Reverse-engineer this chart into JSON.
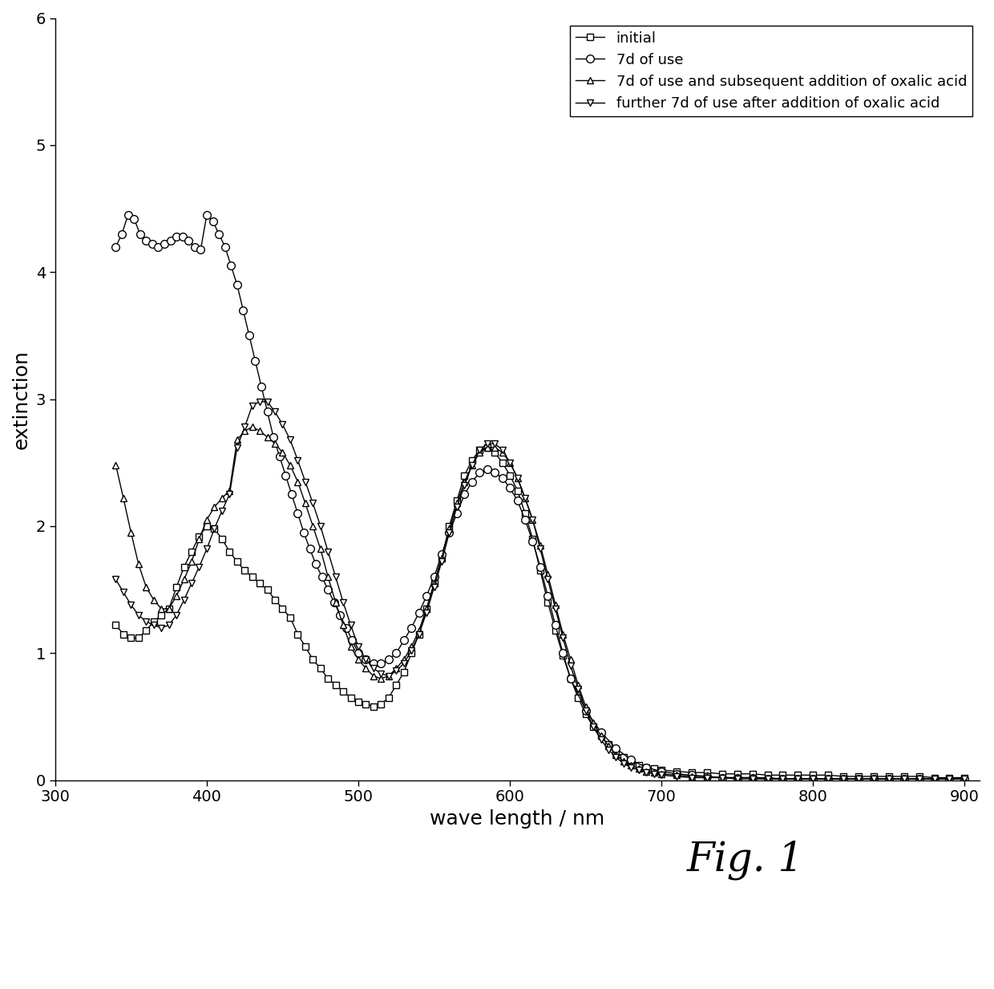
{
  "title": "",
  "xlabel": "wave length / nm",
  "ylabel": "extinction",
  "xlim": [
    300,
    910
  ],
  "ylim": [
    0,
    6
  ],
  "xticks": [
    300,
    400,
    500,
    600,
    700,
    800,
    900
  ],
  "yticks": [
    0,
    1,
    2,
    3,
    4,
    5,
    6
  ],
  "fig_caption": "Fig. 1",
  "legend_labels": [
    "initial",
    "7d of use",
    "7d of use and subsequent addition of oxalic acid",
    "further 7d of use after addition of oxalic acid"
  ],
  "line_color": "#000000",
  "background_color": "#ffffff",
  "series": {
    "initial": {
      "x": [
        340,
        345,
        350,
        355,
        360,
        365,
        370,
        375,
        380,
        385,
        390,
        395,
        400,
        405,
        410,
        415,
        420,
        425,
        430,
        435,
        440,
        445,
        450,
        455,
        460,
        465,
        470,
        475,
        480,
        485,
        490,
        495,
        500,
        505,
        510,
        515,
        520,
        525,
        530,
        535,
        540,
        545,
        550,
        555,
        560,
        565,
        570,
        575,
        580,
        585,
        590,
        595,
        600,
        605,
        610,
        615,
        620,
        625,
        630,
        635,
        640,
        645,
        650,
        655,
        660,
        665,
        670,
        675,
        680,
        685,
        690,
        695,
        700,
        710,
        720,
        730,
        740,
        750,
        760,
        770,
        780,
        790,
        800,
        810,
        820,
        830,
        840,
        850,
        860,
        870,
        880,
        890,
        900
      ],
      "y": [
        1.22,
        1.15,
        1.12,
        1.12,
        1.18,
        1.25,
        1.3,
        1.35,
        1.52,
        1.68,
        1.8,
        1.92,
        2.0,
        1.98,
        1.9,
        1.8,
        1.72,
        1.65,
        1.6,
        1.55,
        1.5,
        1.42,
        1.35,
        1.28,
        1.15,
        1.05,
        0.95,
        0.88,
        0.8,
        0.75,
        0.7,
        0.65,
        0.62,
        0.6,
        0.58,
        0.6,
        0.65,
        0.75,
        0.85,
        1.0,
        1.15,
        1.35,
        1.55,
        1.75,
        2.0,
        2.2,
        2.4,
        2.52,
        2.6,
        2.62,
        2.58,
        2.5,
        2.4,
        2.28,
        2.1,
        1.9,
        1.65,
        1.4,
        1.18,
        0.98,
        0.8,
        0.65,
        0.52,
        0.42,
        0.35,
        0.28,
        0.22,
        0.18,
        0.15,
        0.12,
        0.1,
        0.09,
        0.08,
        0.07,
        0.06,
        0.06,
        0.05,
        0.05,
        0.05,
        0.04,
        0.04,
        0.04,
        0.04,
        0.04,
        0.03,
        0.03,
        0.03,
        0.03,
        0.03,
        0.03,
        0.02,
        0.02,
        0.02
      ],
      "marker": "s",
      "markersize": 6,
      "markerfill": "white"
    },
    "7d_of_use": {
      "x": [
        340,
        344,
        348,
        352,
        356,
        360,
        364,
        368,
        372,
        376,
        380,
        384,
        388,
        392,
        396,
        400,
        404,
        408,
        412,
        416,
        420,
        424,
        428,
        432,
        436,
        440,
        444,
        448,
        452,
        456,
        460,
        464,
        468,
        472,
        476,
        480,
        484,
        488,
        492,
        496,
        500,
        505,
        510,
        515,
        520,
        525,
        530,
        535,
        540,
        545,
        550,
        555,
        560,
        565,
        570,
        575,
        580,
        585,
        590,
        595,
        600,
        605,
        610,
        615,
        620,
        625,
        630,
        635,
        640,
        650,
        660,
        670,
        680,
        690,
        700,
        710,
        720,
        730,
        740,
        750,
        760,
        770,
        780,
        790,
        800,
        810,
        820,
        830,
        840,
        850,
        860,
        870,
        880,
        890,
        900
      ],
      "y": [
        4.2,
        4.3,
        4.45,
        4.42,
        4.3,
        4.25,
        4.22,
        4.2,
        4.22,
        4.25,
        4.28,
        4.28,
        4.25,
        4.2,
        4.18,
        4.45,
        4.4,
        4.3,
        4.2,
        4.05,
        3.9,
        3.7,
        3.5,
        3.3,
        3.1,
        2.9,
        2.7,
        2.55,
        2.4,
        2.25,
        2.1,
        1.95,
        1.82,
        1.7,
        1.6,
        1.5,
        1.4,
        1.3,
        1.2,
        1.1,
        1.0,
        0.95,
        0.92,
        0.92,
        0.95,
        1.0,
        1.1,
        1.2,
        1.32,
        1.45,
        1.6,
        1.78,
        1.95,
        2.1,
        2.25,
        2.35,
        2.42,
        2.45,
        2.42,
        2.38,
        2.3,
        2.2,
        2.05,
        1.88,
        1.68,
        1.45,
        1.22,
        1.0,
        0.8,
        0.55,
        0.38,
        0.25,
        0.16,
        0.1,
        0.07,
        0.05,
        0.04,
        0.03,
        0.02,
        0.02,
        0.02,
        0.01,
        0.01,
        0.01,
        0.01,
        0.01,
        0.01,
        0.01,
        0.01,
        0.01,
        0.01,
        0.01,
        0.01,
        0.01,
        0.01
      ],
      "marker": "o",
      "markersize": 7,
      "markerfill": "white"
    },
    "7d_oxalic": {
      "x": [
        340,
        345,
        350,
        355,
        360,
        365,
        370,
        375,
        380,
        385,
        390,
        395,
        400,
        405,
        410,
        415,
        420,
        425,
        430,
        435,
        440,
        445,
        450,
        455,
        460,
        465,
        470,
        475,
        480,
        485,
        490,
        495,
        500,
        505,
        510,
        515,
        520,
        525,
        530,
        535,
        540,
        545,
        550,
        555,
        560,
        565,
        570,
        575,
        580,
        585,
        590,
        595,
        600,
        605,
        610,
        615,
        620,
        625,
        630,
        635,
        640,
        645,
        650,
        655,
        660,
        665,
        670,
        675,
        680,
        685,
        690,
        695,
        700,
        710,
        720,
        730,
        740,
        750,
        760,
        770,
        780,
        790,
        800,
        810,
        820,
        830,
        840,
        850,
        860,
        870,
        880,
        890,
        900
      ],
      "y": [
        2.48,
        2.22,
        1.95,
        1.7,
        1.52,
        1.42,
        1.35,
        1.35,
        1.45,
        1.58,
        1.72,
        1.9,
        2.05,
        2.15,
        2.22,
        2.28,
        2.68,
        2.75,
        2.78,
        2.75,
        2.7,
        2.65,
        2.58,
        2.48,
        2.35,
        2.18,
        2.0,
        1.82,
        1.6,
        1.4,
        1.22,
        1.05,
        0.95,
        0.88,
        0.82,
        0.8,
        0.82,
        0.88,
        0.95,
        1.05,
        1.18,
        1.35,
        1.55,
        1.75,
        1.98,
        2.18,
        2.35,
        2.48,
        2.58,
        2.62,
        2.62,
        2.58,
        2.5,
        2.38,
        2.22,
        2.05,
        1.85,
        1.62,
        1.38,
        1.15,
        0.95,
        0.75,
        0.58,
        0.45,
        0.35,
        0.27,
        0.2,
        0.15,
        0.12,
        0.09,
        0.07,
        0.06,
        0.05,
        0.04,
        0.03,
        0.03,
        0.02,
        0.02,
        0.02,
        0.02,
        0.01,
        0.01,
        0.01,
        0.01,
        0.01,
        0.01,
        0.01,
        0.01,
        0.01,
        0.01,
        0.01,
        0.01,
        0.01
      ],
      "marker": "^",
      "markersize": 6,
      "markerfill": "white"
    },
    "further_7d": {
      "x": [
        340,
        345,
        350,
        355,
        360,
        365,
        370,
        375,
        380,
        385,
        390,
        395,
        400,
        405,
        410,
        415,
        420,
        425,
        430,
        435,
        440,
        445,
        450,
        455,
        460,
        465,
        470,
        475,
        480,
        485,
        490,
        495,
        500,
        505,
        510,
        515,
        520,
        525,
        530,
        535,
        540,
        545,
        550,
        555,
        560,
        565,
        570,
        575,
        580,
        585,
        590,
        595,
        600,
        605,
        610,
        615,
        620,
        625,
        630,
        635,
        640,
        645,
        650,
        655,
        660,
        665,
        670,
        675,
        680,
        685,
        690,
        695,
        700,
        710,
        720,
        730,
        740,
        750,
        760,
        770,
        780,
        790,
        800,
        810,
        820,
        830,
        840,
        850,
        860,
        870,
        880,
        890,
        900
      ],
      "y": [
        1.58,
        1.48,
        1.38,
        1.3,
        1.25,
        1.22,
        1.2,
        1.22,
        1.3,
        1.42,
        1.55,
        1.68,
        1.82,
        1.98,
        2.12,
        2.25,
        2.62,
        2.78,
        2.95,
        2.98,
        2.98,
        2.9,
        2.8,
        2.68,
        2.52,
        2.35,
        2.18,
        2.0,
        1.8,
        1.6,
        1.4,
        1.22,
        1.05,
        0.95,
        0.88,
        0.84,
        0.82,
        0.86,
        0.92,
        1.02,
        1.15,
        1.32,
        1.52,
        1.72,
        1.95,
        2.15,
        2.32,
        2.48,
        2.6,
        2.65,
        2.65,
        2.6,
        2.5,
        2.38,
        2.22,
        2.05,
        1.82,
        1.58,
        1.35,
        1.12,
        0.9,
        0.72,
        0.55,
        0.42,
        0.32,
        0.24,
        0.18,
        0.13,
        0.1,
        0.08,
        0.06,
        0.05,
        0.04,
        0.03,
        0.02,
        0.02,
        0.02,
        0.01,
        0.01,
        0.01,
        0.01,
        0.01,
        0.01,
        0.01,
        0.01,
        0.01,
        0.01,
        0.01,
        0.01,
        0.01,
        0.01,
        0.01,
        0.01
      ],
      "marker": "v",
      "markersize": 6,
      "markerfill": "white"
    }
  }
}
